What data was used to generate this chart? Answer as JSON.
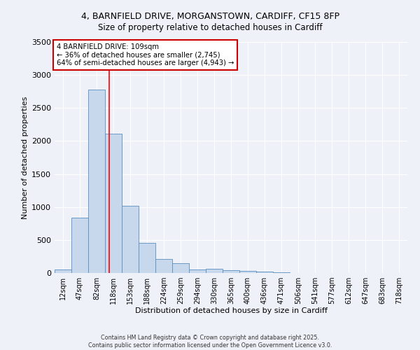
{
  "title_line1": "4, BARNFIELD DRIVE, MORGANSTOWN, CARDIFF, CF15 8FP",
  "title_line2": "Size of property relative to detached houses in Cardiff",
  "xlabel": "Distribution of detached houses by size in Cardiff",
  "ylabel": "Number of detached properties",
  "bin_labels": [
    "12sqm",
    "47sqm",
    "82sqm",
    "118sqm",
    "153sqm",
    "188sqm",
    "224sqm",
    "259sqm",
    "294sqm",
    "330sqm",
    "365sqm",
    "400sqm",
    "436sqm",
    "471sqm",
    "506sqm",
    "541sqm",
    "577sqm",
    "612sqm",
    "647sqm",
    "683sqm",
    "718sqm"
  ],
  "bar_values": [
    55,
    840,
    2780,
    2110,
    1020,
    455,
    210,
    145,
    50,
    65,
    45,
    30,
    18,
    12,
    5,
    4,
    2,
    2,
    1,
    1,
    0
  ],
  "bar_color": "#c8d8ec",
  "bar_edgecolor": "#5a8fc0",
  "ylim": [
    0,
    3500
  ],
  "yticks": [
    0,
    500,
    1000,
    1500,
    2000,
    2500,
    3000,
    3500
  ],
  "red_line_x": 2.77,
  "annotation_title": "4 BARNFIELD DRIVE: 109sqm",
  "annotation_line1": "← 36% of detached houses are smaller (2,745)",
  "annotation_line2": "64% of semi-detached houses are larger (4,943) →",
  "annotation_box_color": "#ffffff",
  "annotation_box_edgecolor": "#cc0000",
  "footer1": "Contains HM Land Registry data © Crown copyright and database right 2025.",
  "footer2": "Contains public sector information licensed under the Open Government Licence v3.0.",
  "bg_color": "#eef2f8"
}
